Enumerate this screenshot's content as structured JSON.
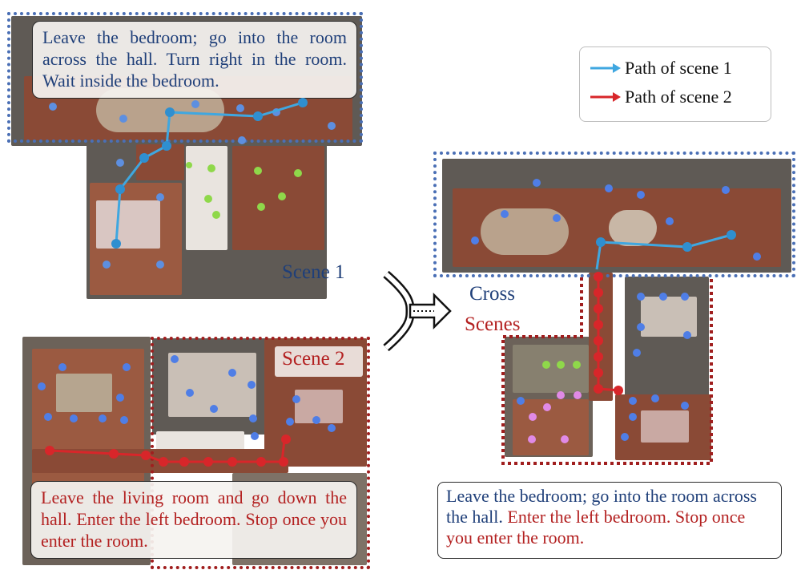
{
  "scene1": {
    "instruction": "Leave the bedroom; go into the room across the hall. Turn right in the room. Wait inside the bedroom.",
    "label": "Scene 1"
  },
  "scene2": {
    "instruction": "Leave the living room and go down the hall. Enter the left bedroom. Stop once you enter the room.",
    "label": "Scene 2"
  },
  "legend": {
    "items": [
      {
        "label": "Path of scene 1",
        "color": "#3fa7e0"
      },
      {
        "label": "Path of scene 2",
        "color": "#d8262a"
      }
    ]
  },
  "cross": {
    "label_line1": "Cross",
    "label_line2": "Scenes",
    "instruction_part1": "Leave the bedroom; go into the room across the hall.",
    "instruction_part2": "Enter the left bedroom. Stop once you enter the room."
  },
  "colors": {
    "scene1_border": "#4a6fb5",
    "scene2_border": "#a01e1e",
    "path1": "#3fa7e0",
    "path2": "#d8262a"
  }
}
